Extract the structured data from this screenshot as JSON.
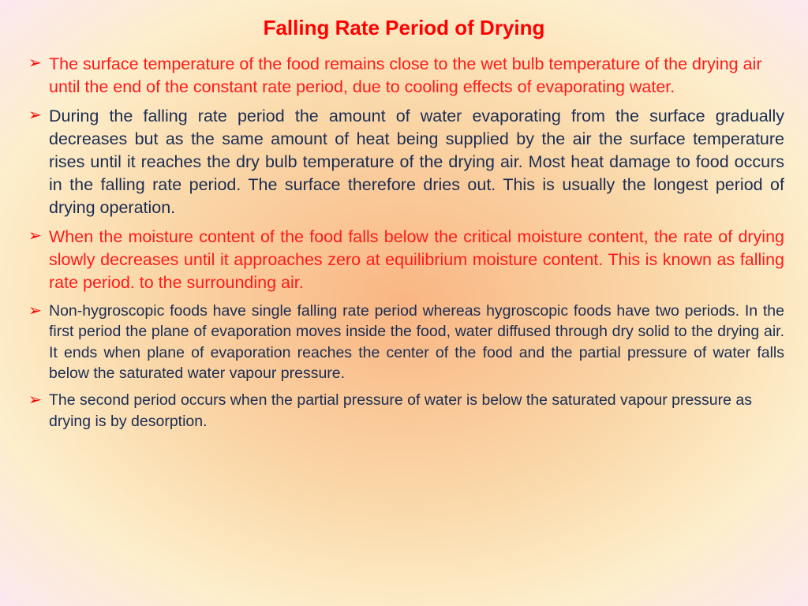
{
  "title": "Falling Rate Period of Drying",
  "colors": {
    "title": "#ff0000",
    "bulletMarker": "#ff0000",
    "redText": "#ff1a1a",
    "navyText": "#1a2d52",
    "bgCenter": "#f9b583",
    "bgMid": "#fad7a8",
    "bgOuter": "#fdeecb",
    "bgCorner": "#fce8f0"
  },
  "typography": {
    "titleFontSize": 26,
    "bodyFontSize": 21.5,
    "smallBodyFontSize": 19.5,
    "fontFamily": "Arial"
  },
  "bullets": [
    {
      "text": "The surface temperature of the food remains close to the wet bulb temperature of the drying air until the end of the constant rate period, due to cooling effects of evaporating water.",
      "color": "red",
      "justify": false,
      "size": "normal"
    },
    {
      "text": "During the falling rate period the amount of water evaporating from the surface gradually decreases but as the same amount of heat being supplied by the air the surface temperature rises until it reaches the dry bulb temperature of the drying air. Most heat damage to food occurs in the falling rate period. The surface therefore dries out. This is usually the longest period of drying operation.",
      "color": "navy",
      "justify": true,
      "size": "normal"
    },
    {
      "text": "When the moisture content of the food falls below the critical moisture content, the rate of drying slowly decreases until it approaches zero at equilibrium moisture content. This is known as falling rate period. to the surrounding air.",
      "color": "red",
      "justify": true,
      "size": "normal"
    },
    {
      "text": "Non-hygroscopic foods have single falling rate period whereas hygroscopic foods have two periods. In the first period the plane of evaporation moves inside the food, water diffused through dry solid to the drying air. It ends when plane of evaporation reaches the center of the food and the partial pressure of water falls below the saturated water vapour pressure.",
      "color": "navy",
      "justify": true,
      "size": "small"
    },
    {
      "text": "The second period occurs when the partial pressure of water is below the saturated vapour pressure as drying is by desorption.",
      "color": "navy",
      "justify": false,
      "size": "small"
    }
  ]
}
